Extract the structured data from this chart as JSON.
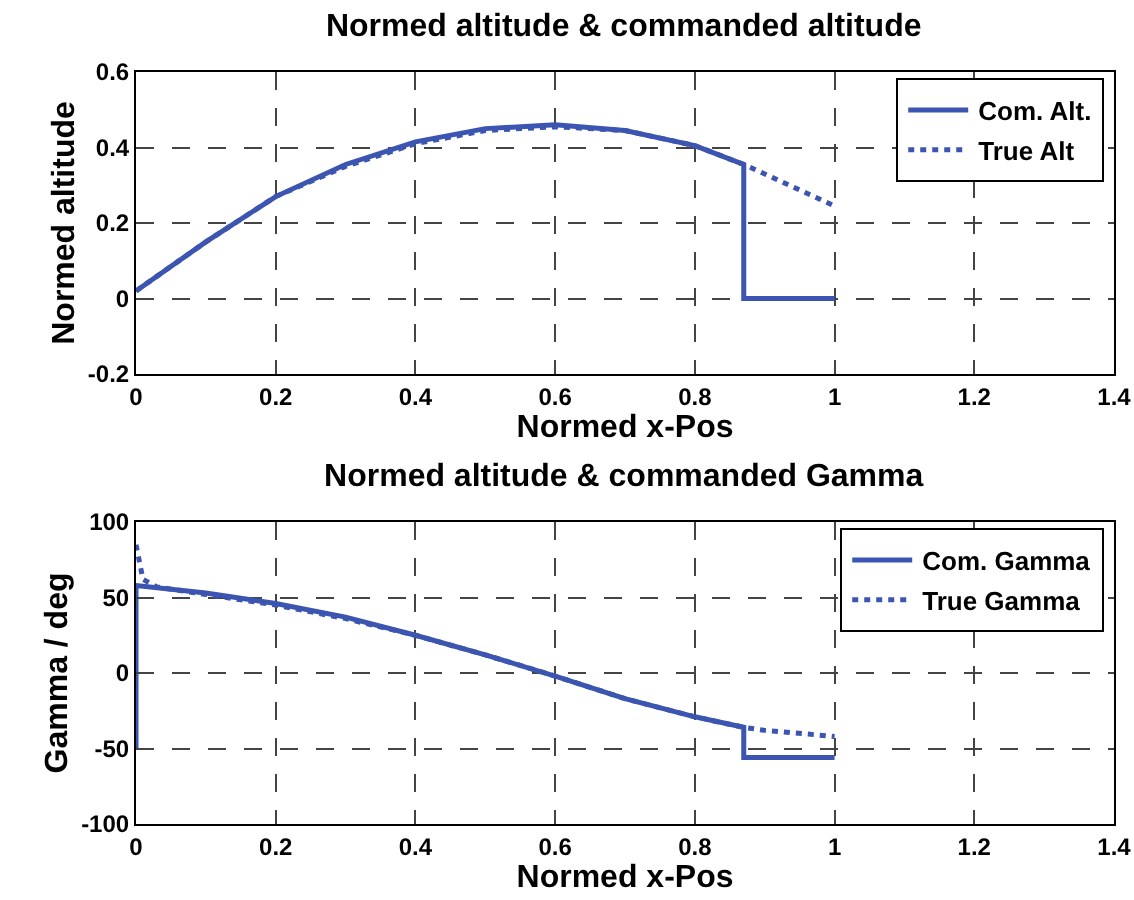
{
  "chart_data": [
    {
      "type": "line",
      "title": "Normed altitude & commanded altitude",
      "xlabel": "Normed x-Pos",
      "ylabel": "Normed altitude",
      "xlim": [
        0,
        1.4
      ],
      "xticks": [
        0,
        0.2,
        0.4,
        0.6,
        0.8,
        1,
        1.2,
        1.4
      ],
      "ylim": [
        -0.2,
        0.6
      ],
      "yticks": [
        -0.2,
        0,
        0.2,
        0.4,
        0.6
      ],
      "grid": true,
      "legend": "top right",
      "series": [
        {
          "name": "Com. Alt.",
          "color": "#3b55b0",
          "line_style": "solid",
          "x": [
            0,
            0.1,
            0.2,
            0.3,
            0.4,
            0.5,
            0.6,
            0.7,
            0.8,
            0.87,
            0.87,
            1
          ],
          "values": [
            0.02,
            0.15,
            0.27,
            0.355,
            0.415,
            0.45,
            0.46,
            0.445,
            0.405,
            0.355,
            0,
            0
          ]
        },
        {
          "name": "True Alt",
          "color": "#3b55b0",
          "line_style": "dotted",
          "x": [
            0,
            0.1,
            0.2,
            0.3,
            0.4,
            0.5,
            0.6,
            0.7,
            0.8,
            0.87,
            0.9,
            1
          ],
          "values": [
            0.02,
            0.15,
            0.27,
            0.35,
            0.41,
            0.445,
            0.455,
            0.445,
            0.405,
            0.355,
            0.33,
            0.245
          ]
        }
      ]
    },
    {
      "type": "line",
      "title": "Normed altitude & commanded Gamma",
      "xlabel": "Normed x-Pos",
      "ylabel": "Gamma / deg",
      "xlim": [
        0,
        1.4
      ],
      "xticks": [
        0,
        0.2,
        0.4,
        0.6,
        0.8,
        1,
        1.2,
        1.4
      ],
      "ylim": [
        -100,
        100
      ],
      "yticks": [
        -100,
        -50,
        0,
        50,
        100
      ],
      "grid": true,
      "legend": "top right",
      "series": [
        {
          "name": "Com. Gamma",
          "color": "#3b55b0",
          "line_style": "solid",
          "x": [
            0,
            0,
            0.1,
            0.2,
            0.3,
            0.4,
            0.5,
            0.6,
            0.7,
            0.8,
            0.87,
            0.87,
            1
          ],
          "values": [
            -50,
            58,
            53,
            46,
            37,
            25,
            12,
            -2,
            -17,
            -29,
            -36,
            -56,
            -56
          ]
        },
        {
          "name": "True Gamma",
          "color": "#3b55b0",
          "line_style": "dotted",
          "x": [
            0,
            0.01,
            0.03,
            0.1,
            0.2,
            0.3,
            0.4,
            0.5,
            0.6,
            0.7,
            0.8,
            0.87,
            0.9,
            1
          ],
          "values": [
            85,
            62,
            57,
            52,
            45,
            36,
            25,
            12,
            -2,
            -17,
            -29,
            -36,
            -38,
            -42
          ]
        }
      ]
    }
  ]
}
